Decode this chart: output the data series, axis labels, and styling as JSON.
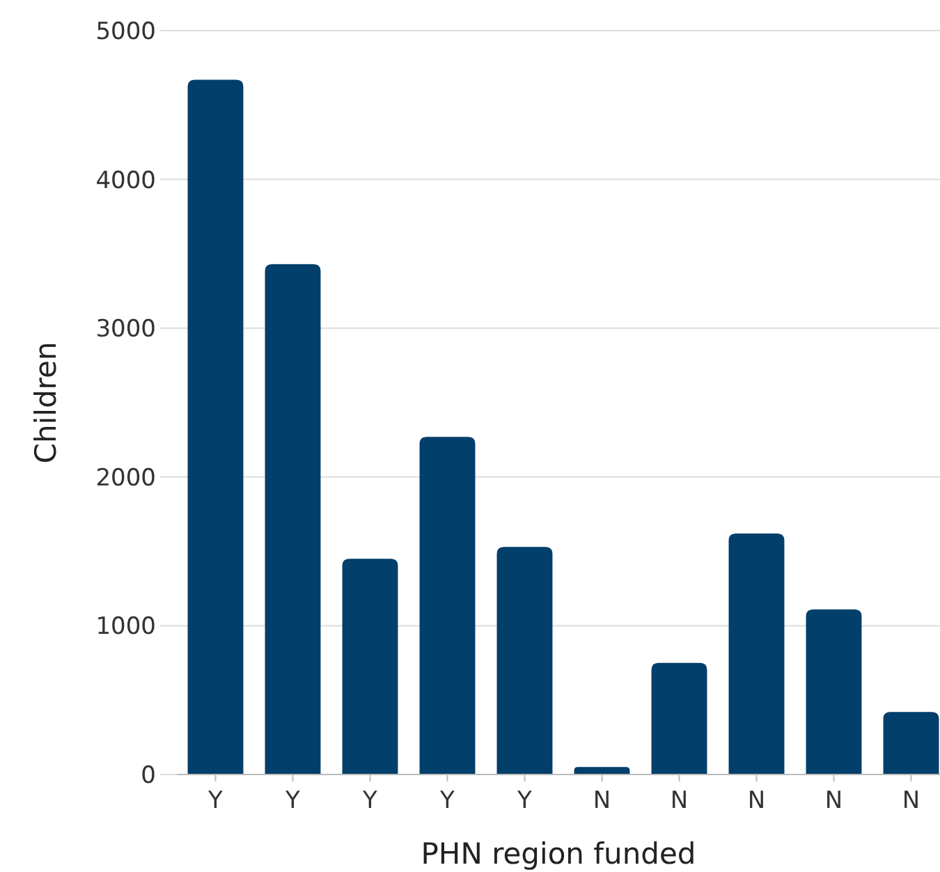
{
  "chart_data": {
    "type": "bar",
    "xlabel": "PHN region funded",
    "ylabel": "Children",
    "categories": [
      "Y",
      "Y",
      "Y",
      "Y",
      "Y",
      "N",
      "N",
      "N",
      "N",
      "N"
    ],
    "values": [
      4670,
      3430,
      1450,
      2270,
      1530,
      50,
      750,
      1620,
      1110,
      420
    ],
    "color": "#023f6a",
    "ylim": [
      0,
      5000
    ],
    "yticks": [
      0,
      1000,
      2000,
      3000,
      4000,
      5000
    ],
    "grid": "y"
  }
}
